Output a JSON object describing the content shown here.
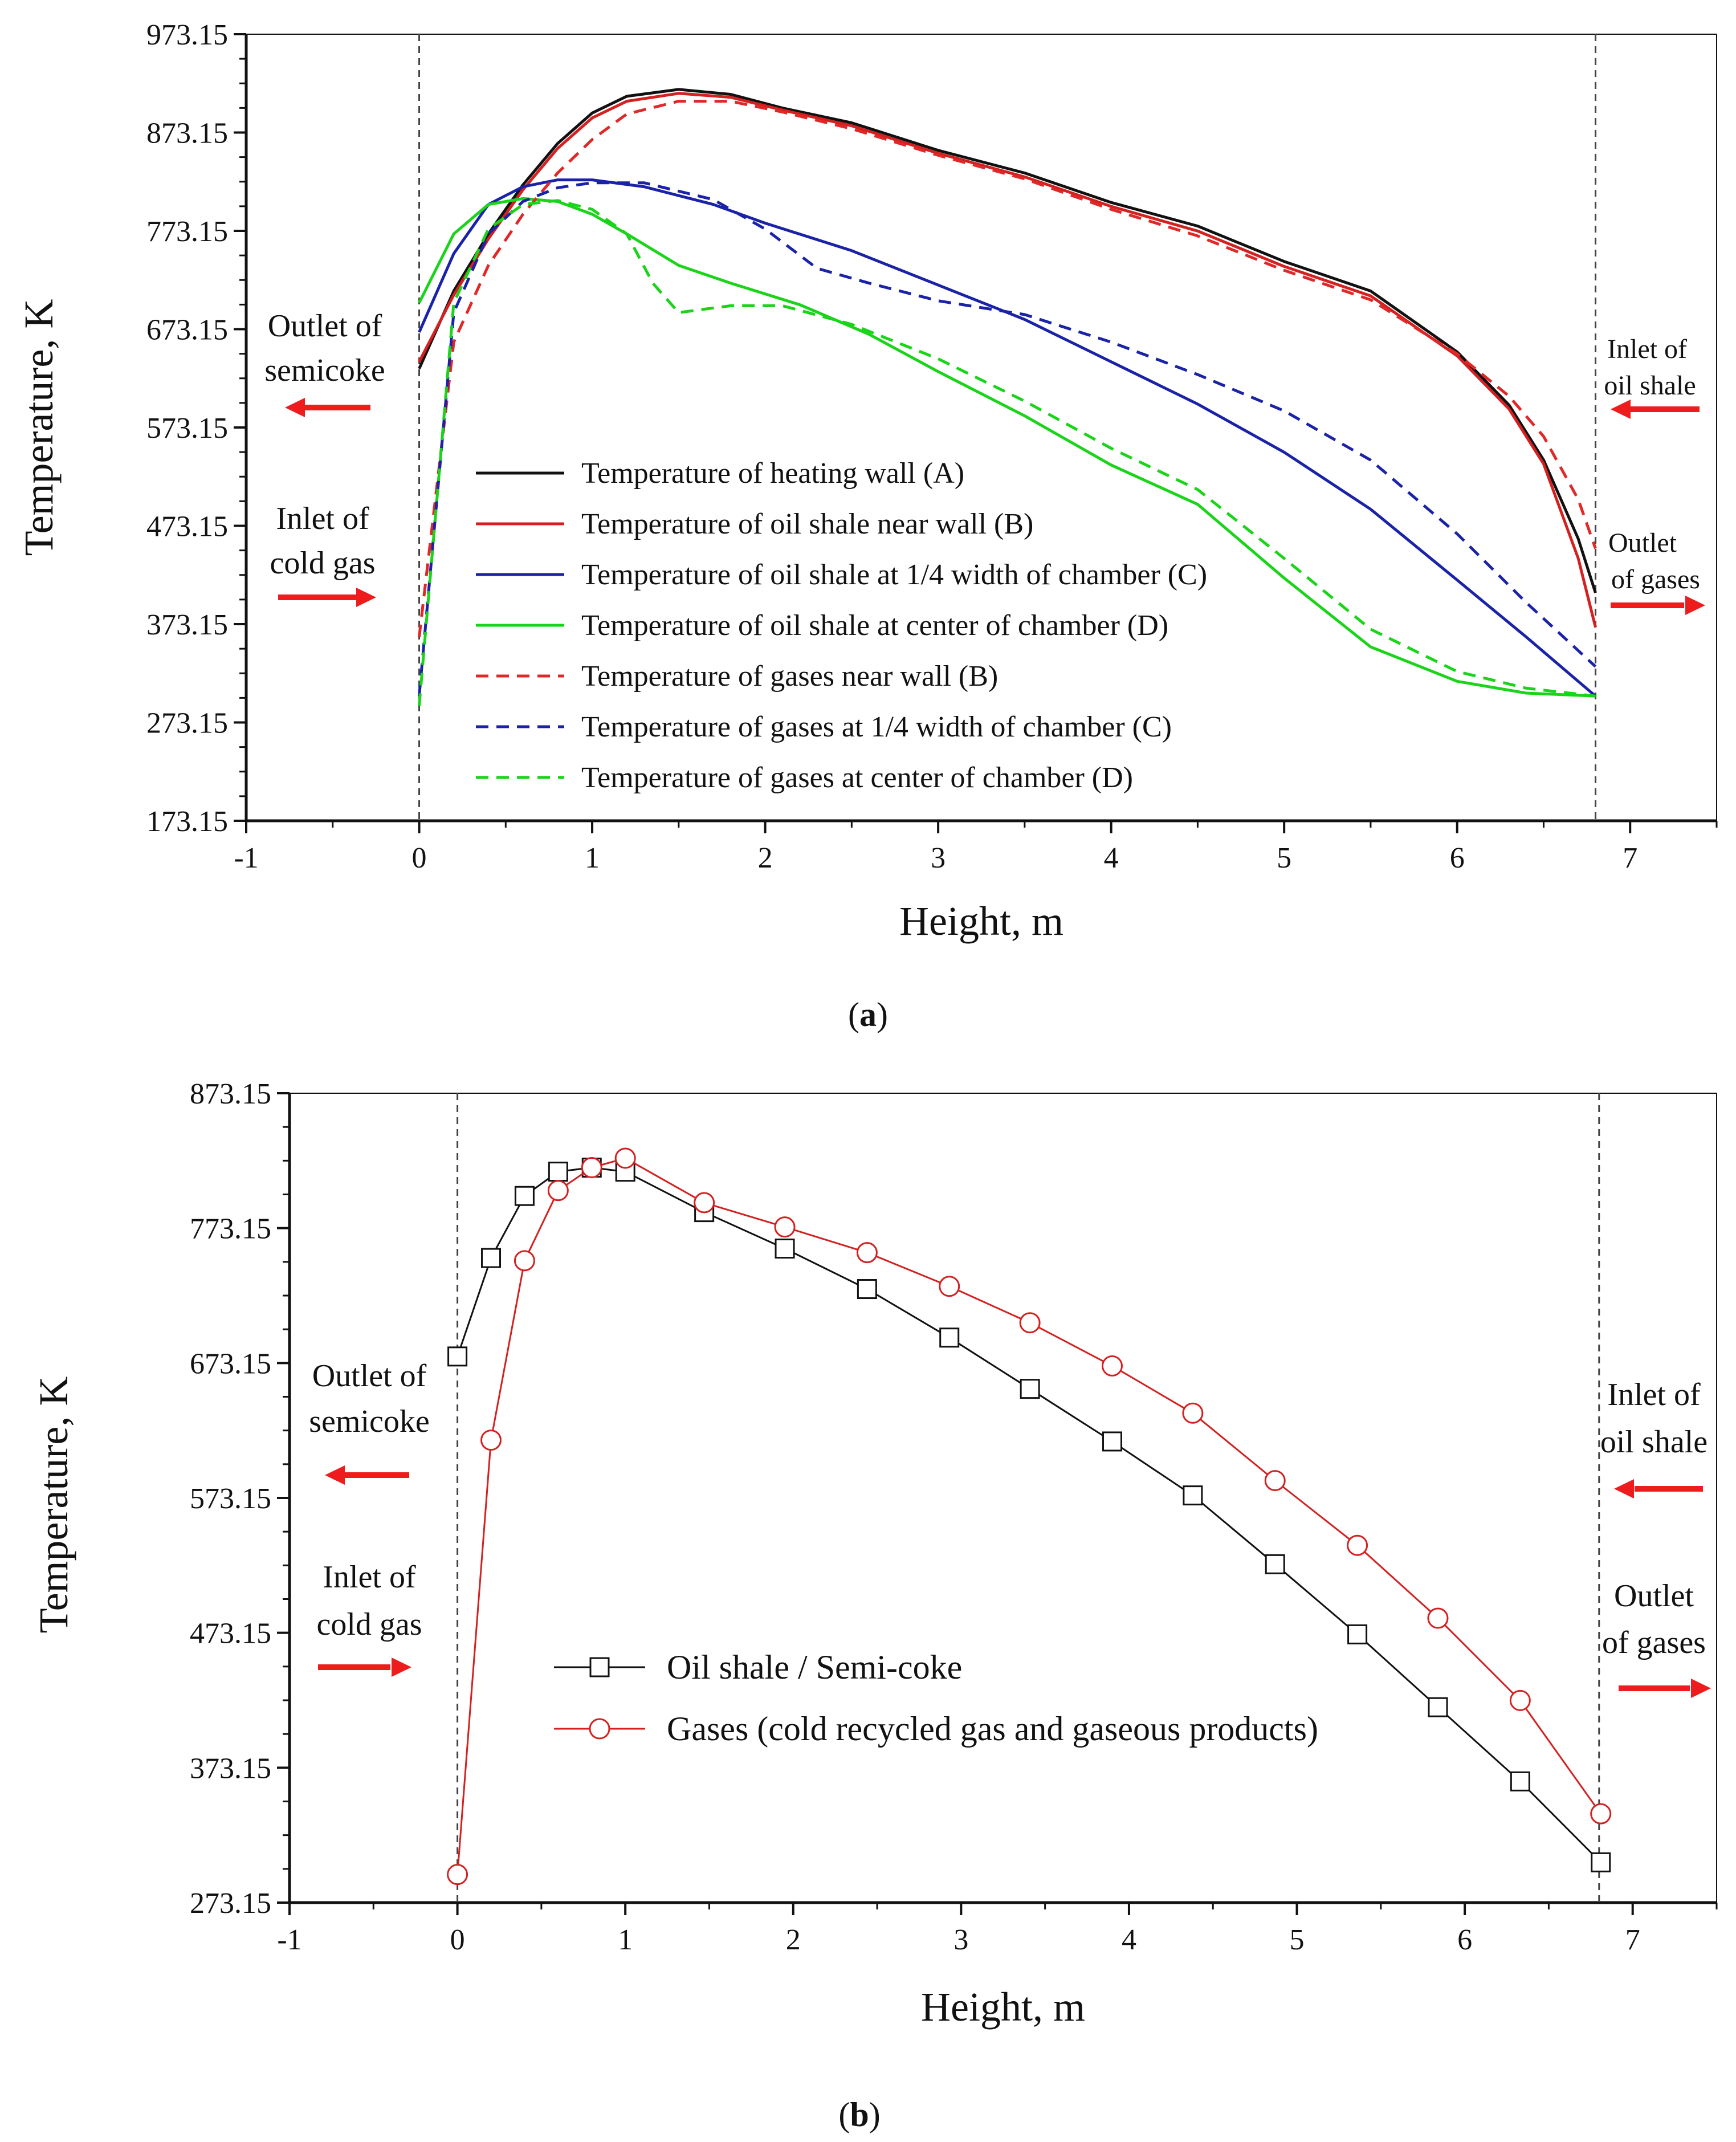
{
  "chart_data": [
    {
      "type": "line",
      "panel": "a",
      "caption_letter": "a",
      "xlabel": "Height, m",
      "ylabel": "Temperature, K",
      "xlim": [
        -1,
        7.5
      ],
      "ylim": [
        173.15,
        973.15
      ],
      "x_ticks": [
        -1,
        0,
        1,
        2,
        3,
        4,
        5,
        6,
        7
      ],
      "y_ticks": [
        173.15,
        273.15,
        373.15,
        473.15,
        573.15,
        673.15,
        773.15,
        873.15,
        973.15
      ],
      "x_tick_labels": [
        "-1",
        "0",
        "1",
        "2",
        "3",
        "4",
        "5",
        "6",
        "7"
      ],
      "y_tick_labels": [
        "173.15",
        "273.15",
        "373.15",
        "473.15",
        "573.15",
        "673.15",
        "773.15",
        "873.15",
        "973.15"
      ],
      "vlines": [
        0,
        6.8
      ],
      "annotations": {
        "outlet_semicoke": [
          "Outlet of",
          "semicoke"
        ],
        "inlet_cold_gas": [
          "Inlet of",
          "cold gas"
        ],
        "inlet_oil_shale": [
          "Inlet of",
          "oil shale"
        ],
        "outlet_gases": [
          "Outlet",
          "of gases"
        ]
      },
      "series": [
        {
          "name": "Temperature of heating wall (A)",
          "color": "#111111",
          "dash": false,
          "x": [
            0,
            0.2,
            0.4,
            0.6,
            0.8,
            1.0,
            1.2,
            1.5,
            1.8,
            2.1,
            2.5,
            3.0,
            3.5,
            4.0,
            4.5,
            5.0,
            5.5,
            6.0,
            6.3,
            6.5,
            6.7,
            6.8
          ],
          "y": [
            633,
            712,
            770,
            820,
            862,
            893,
            910,
            917,
            912,
            898,
            883,
            855,
            832,
            802,
            778,
            742,
            712,
            650,
            596,
            540,
            460,
            405
          ]
        },
        {
          "name": "Temperature of oil shale near wall (B)",
          "color": "#d42020",
          "dash": false,
          "x": [
            0,
            0.2,
            0.4,
            0.6,
            0.8,
            1.0,
            1.2,
            1.5,
            1.8,
            2.1,
            2.5,
            3.0,
            3.5,
            4.0,
            4.5,
            5.0,
            5.5,
            6.0,
            6.3,
            6.5,
            6.7,
            6.8
          ],
          "y": [
            640,
            708,
            765,
            815,
            857,
            888,
            905,
            913,
            909,
            896,
            880,
            852,
            828,
            798,
            773,
            737,
            707,
            646,
            592,
            536,
            440,
            370
          ]
        },
        {
          "name": "Temperature of oil shale at 1/4 width of chamber (C)",
          "color": "#1a22a8",
          "dash": false,
          "x": [
            0,
            0.2,
            0.4,
            0.6,
            0.8,
            1.0,
            1.3,
            1.7,
            2.0,
            2.5,
            3.0,
            3.5,
            4.0,
            4.5,
            5.0,
            5.5,
            6.0,
            6.4,
            6.8
          ],
          "y": [
            670,
            750,
            800,
            818,
            825,
            825,
            818,
            800,
            781,
            753,
            718,
            683,
            640,
            597,
            548,
            490,
            418,
            360,
            300
          ]
        },
        {
          "name": "Temperature of oil shale at center of chamber (D)",
          "color": "#19d419",
          "dash": false,
          "x": [
            0,
            0.2,
            0.4,
            0.6,
            0.8,
            1.0,
            1.2,
            1.5,
            1.8,
            2.2,
            2.6,
            3.0,
            3.5,
            4.0,
            4.5,
            5.0,
            5.5,
            6.0,
            6.4,
            6.8
          ],
          "y": [
            700,
            770,
            800,
            806,
            803,
            790,
            770,
            738,
            720,
            698,
            668,
            630,
            585,
            535,
            495,
            420,
            350,
            315,
            303,
            300
          ]
        },
        {
          "name": "Temperature of gases near wall (B)",
          "color": "#e02828",
          "dash": true,
          "x": [
            0,
            0.2,
            0.4,
            0.6,
            0.8,
            1.0,
            1.2,
            1.5,
            1.8,
            2.1,
            2.5,
            3.0,
            3.5,
            4.0,
            4.5,
            5.0,
            5.5,
            6.0,
            6.3,
            6.5,
            6.7,
            6.8
          ],
          "y": [
            360,
            660,
            738,
            790,
            832,
            866,
            892,
            905,
            905,
            894,
            877,
            850,
            826,
            795,
            768,
            733,
            703,
            648,
            605,
            564,
            500,
            450
          ]
        },
        {
          "name": "Temperature of gases at 1/4 width of chamber (C)",
          "color": "#1a22a8",
          "dash": true,
          "x": [
            0,
            0.2,
            0.4,
            0.6,
            0.8,
            1.0,
            1.3,
            1.7,
            2.0,
            2.3,
            2.6,
            3.0,
            3.5,
            4.0,
            4.5,
            5.0,
            5.5,
            6.0,
            6.4,
            6.8
          ],
          "y": [
            300,
            690,
            770,
            803,
            817,
            822,
            822,
            805,
            775,
            735,
            720,
            702,
            688,
            660,
            627,
            590,
            540,
            465,
            395,
            330
          ]
        },
        {
          "name": "Temperature of gases at center of chamber (D)",
          "color": "#19d419",
          "dash": true,
          "x": [
            0,
            0.2,
            0.4,
            0.6,
            0.8,
            1.0,
            1.2,
            1.35,
            1.5,
            1.8,
            2.1,
            2.5,
            3.0,
            3.5,
            4.0,
            4.5,
            5.0,
            5.5,
            6.0,
            6.4,
            6.8
          ],
          "y": [
            290,
            700,
            775,
            800,
            804,
            795,
            770,
            720,
            690,
            697,
            697,
            678,
            643,
            600,
            552,
            510,
            440,
            368,
            325,
            308,
            300
          ]
        }
      ]
    },
    {
      "type": "line",
      "panel": "b",
      "caption_letter": "b",
      "xlabel": "Height, m",
      "ylabel": "Temperature, K",
      "xlim": [
        -1,
        7.5
      ],
      "ylim": [
        273.15,
        873.15
      ],
      "x_ticks": [
        -1,
        0,
        1,
        2,
        3,
        4,
        5,
        6,
        7
      ],
      "y_ticks": [
        273.15,
        373.15,
        473.15,
        573.15,
        673.15,
        773.15,
        873.15
      ],
      "x_tick_labels": [
        "-1",
        "0",
        "1",
        "2",
        "3",
        "4",
        "5",
        "6",
        "7"
      ],
      "y_tick_labels": [
        "273.15",
        "373.15",
        "473.15",
        "573.15",
        "673.15",
        "773.15",
        "873.15"
      ],
      "vlines": [
        0,
        6.8
      ],
      "annotations": {
        "outlet_semicoke": [
          "Outlet of",
          "semicoke"
        ],
        "inlet_cold_gas": [
          "Inlet of",
          "cold gas"
        ],
        "inlet_oil_shale": [
          "Inlet of",
          "oil shale"
        ],
        "outlet_gases": [
          "Outlet",
          "of gases"
        ]
      },
      "series": [
        {
          "name": "Oil shale / Semi-coke",
          "color": "#111111",
          "marker": "square",
          "x": [
            0,
            0.2,
            0.4,
            0.6,
            0.8,
            1.0,
            1.47,
            1.95,
            2.44,
            2.93,
            3.41,
            3.9,
            4.38,
            4.87,
            5.36,
            5.84,
            6.33,
            6.81
          ],
          "y": [
            678,
            751,
            797,
            815,
            818,
            815,
            785,
            758,
            728,
            692,
            654,
            615,
            575,
            524,
            472,
            418,
            363,
            303
          ]
        },
        {
          "name": "Gases (cold recycled gas and gaseous products)",
          "color": "#d42020",
          "marker": "circle",
          "x": [
            0,
            0.2,
            0.4,
            0.6,
            0.8,
            1.0,
            1.47,
            1.95,
            2.44,
            2.93,
            3.41,
            3.9,
            4.38,
            4.87,
            5.36,
            5.84,
            6.33,
            6.81
          ],
          "y": [
            294,
            616,
            749,
            801,
            818,
            825,
            792,
            774,
            755,
            730,
            703,
            671,
            636,
            586,
            538,
            484,
            423,
            339
          ]
        }
      ]
    }
  ]
}
